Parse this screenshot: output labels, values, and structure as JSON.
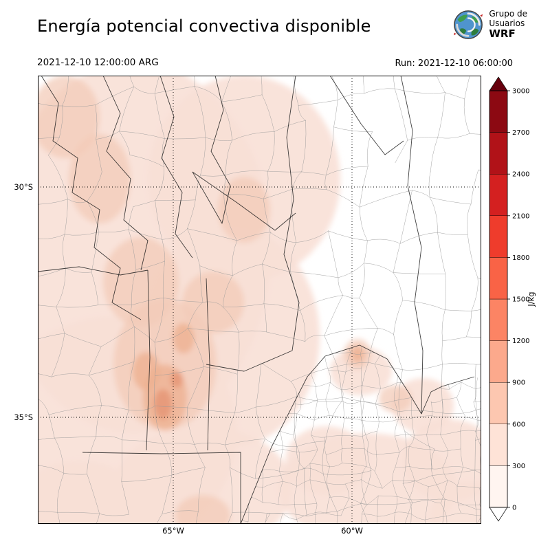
{
  "header": {
    "title": "Energía potencial convectiva disponible",
    "valid_time": "2021-12-10 12:00:00 ARG",
    "run_label": "Run: 2021-12-10 06:00:00",
    "logo": {
      "line1": "Grupo de",
      "line2": "Usuarios",
      "line3": "WRF"
    }
  },
  "map": {
    "y_ticks": [
      "30°S",
      "35°S"
    ],
    "x_ticks": [
      "65°W",
      "60°W"
    ],
    "field_colors": [
      "#f8e0d6",
      "#f3cbb8",
      "#edb091",
      "#e59878"
    ],
    "department_line_color": "#9a9a9a",
    "province_line_color": "#1f1f1f"
  },
  "colorbar": {
    "unit": "J/kg",
    "ticks": [
      0,
      300,
      600,
      900,
      1200,
      1500,
      1800,
      2100,
      2400,
      2700,
      3000
    ],
    "colors": [
      "#fff5f0",
      "#fee3d7",
      "#fdc7b0",
      "#fca98c",
      "#fc8464",
      "#f96346",
      "#ef3c2c",
      "#d42020",
      "#b11218",
      "#8c0912"
    ],
    "over_color": "#67000d",
    "under_color": "#ffffff"
  },
  "chart_data": {
    "type": "heatmap",
    "title": "Energía potencial convectiva disponible",
    "unit": "J/kg",
    "levels": [
      0,
      300,
      600,
      900,
      1200,
      1500,
      1800,
      2100,
      2400,
      2700,
      3000
    ],
    "x_ticks": [
      "65°W",
      "60°W"
    ],
    "y_ticks": [
      "30°S",
      "35°S"
    ],
    "legend_position": "right",
    "notes": "CAPE shading mostly in the 0–600 J/kg range over the western half of the domain; small stronger patches near 32–34°S, 66°W and over northern Buenos Aires"
  }
}
